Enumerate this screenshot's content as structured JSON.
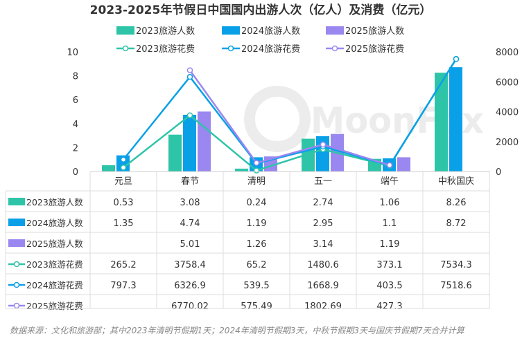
{
  "chart_data": {
    "type": "bar",
    "title": "2023-2025年节假日中国国内出游人次（亿人）及消费（亿元）",
    "categories": [
      "元旦",
      "春节",
      "清明",
      "五一",
      "端午",
      "中秋国庆"
    ],
    "left_axis": {
      "ylim": [
        0,
        10
      ],
      "ticks": [
        "0",
        "2",
        "4",
        "6",
        "8",
        "10"
      ]
    },
    "right_axis": {
      "ylim": [
        0,
        8000
      ],
      "ticks": [
        "0",
        "2000",
        "4000",
        "6000",
        "8000"
      ]
    },
    "bar_series": [
      {
        "name": "2023旅游人数",
        "color": "#2ec4a8",
        "values": [
          0.53,
          3.08,
          0.24,
          2.74,
          1.06,
          8.26
        ],
        "labels": [
          "0.53",
          "3.08",
          "0.24",
          "2.74",
          "1.06",
          "8.26"
        ]
      },
      {
        "name": "2024旅游人数",
        "color": "#0aa0e8",
        "values": [
          1.35,
          4.74,
          1.19,
          2.95,
          1.1,
          8.72
        ],
        "labels": [
          "1.35",
          "4.74",
          "1.19",
          "2.95",
          "1.1",
          "8.72"
        ]
      },
      {
        "name": "2025旅游人数",
        "color": "#9b87f0",
        "values": [
          null,
          5.01,
          1.26,
          3.14,
          1.19,
          null
        ],
        "labels": [
          "",
          "5.01",
          "1.26",
          "3.14",
          "1.19",
          ""
        ]
      }
    ],
    "line_series": [
      {
        "name": "2023旅游花费",
        "color": "#2ec4a8",
        "values": [
          265.2,
          3758.4,
          65.2,
          1480.6,
          373.1,
          7534.3
        ],
        "labels": [
          "265.2",
          "3758.4",
          "65.2",
          "1480.6",
          "373.1",
          "7534.3"
        ]
      },
      {
        "name": "2024旅游花费",
        "color": "#0aa0e8",
        "values": [
          797.3,
          6326.9,
          539.5,
          1668.9,
          403.5,
          7518.6
        ],
        "labels": [
          "797.3",
          "6326.9",
          "539.5",
          "1668.9",
          "403.5",
          "7518.6"
        ]
      },
      {
        "name": "2025旅游花费",
        "color": "#9b87f0",
        "values": [
          null,
          6770.02,
          575.49,
          1802.69,
          427.3,
          null
        ],
        "labels": [
          "",
          "6770.02",
          "575.49",
          "1802.69",
          "427.3",
          ""
        ]
      }
    ],
    "watermark": "MoonFox",
    "source": "数据来源：文化和旅游部；其中2023年清明节假期1天；2024年清明节假期3天，中秋节假期3天与国庆节假期7天合并计算"
  }
}
